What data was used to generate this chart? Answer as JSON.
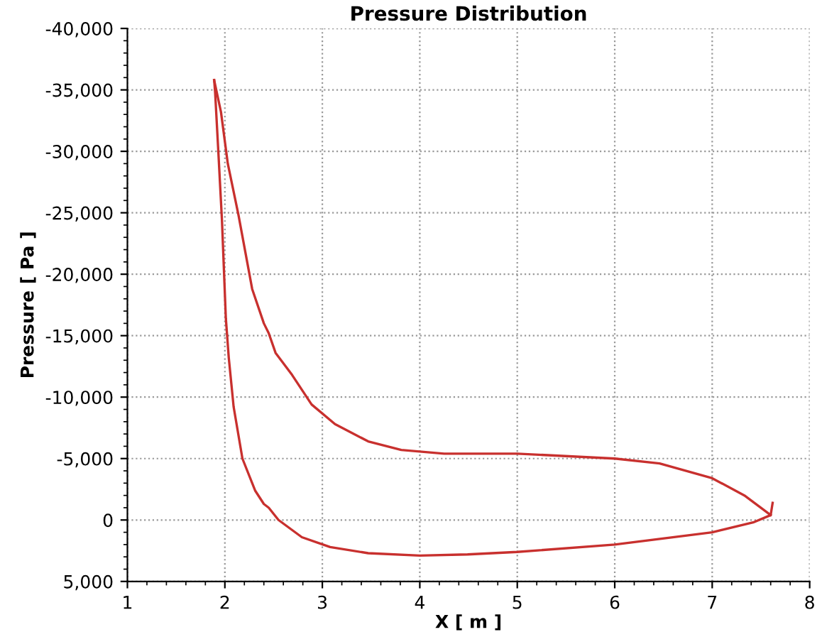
{
  "chart_data": {
    "type": "line",
    "title": "Pressure Distribution",
    "xlabel": "X [ m ]",
    "ylabel": "Pressure [ Pa ]",
    "series": [
      {
        "color": "#c8302e",
        "x": [
          1.89,
          1.96,
          2.03,
          2.14,
          2.28,
          2.4,
          2.45,
          2.52,
          2.69,
          2.89,
          3.13,
          3.47,
          3.81,
          4.25,
          5,
          6,
          6.46,
          7,
          7.33,
          7.6
        ],
        "values": [
          -35800,
          -33200,
          -29000,
          -24800,
          -18800,
          -16000,
          -15200,
          -13600,
          -11800,
          -9400,
          -7800,
          -6400,
          -5700,
          -5400,
          -5400,
          -5000,
          -4600,
          -3400,
          -2000,
          -400
        ]
      },
      {
        "color": "#c8302e",
        "x": [
          1.89,
          1.9,
          1.93,
          1.97,
          2.01,
          2.04,
          2.09,
          2.18,
          2.31,
          2.4,
          2.45,
          2.55,
          2.79,
          3.08,
          3.47,
          4,
          4.49,
          5,
          6,
          7,
          7.42,
          7.6,
          7.62
        ],
        "values": [
          -35800,
          -34800,
          -30400,
          -24400,
          -16400,
          -13200,
          -9200,
          -5000,
          -2400,
          -1300,
          -1000,
          0,
          1400,
          2200,
          2700,
          2900,
          2800,
          2600,
          2000,
          1000,
          200,
          -400,
          -1400
        ]
      }
    ],
    "xlim": [
      1,
      8
    ],
    "ylim": [
      5000,
      -40000
    ],
    "xticks": [
      1,
      2,
      3,
      4,
      5,
      6,
      7,
      8
    ],
    "yticks": [
      {
        "value": 5000,
        "label": "5,000"
      },
      {
        "value": 0,
        "label": "0"
      },
      {
        "value": -5000,
        "label": "-5,000"
      },
      {
        "value": -10000,
        "label": "-10,000"
      },
      {
        "value": -15000,
        "label": "-15,000"
      },
      {
        "value": -20000,
        "label": "-20,000"
      },
      {
        "value": -25000,
        "label": "-25,000"
      },
      {
        "value": -30000,
        "label": "-30,000"
      },
      {
        "value": -35000,
        "label": "-35,000"
      },
      {
        "value": -40000,
        "label": "-40,000"
      }
    ],
    "grid": true
  }
}
